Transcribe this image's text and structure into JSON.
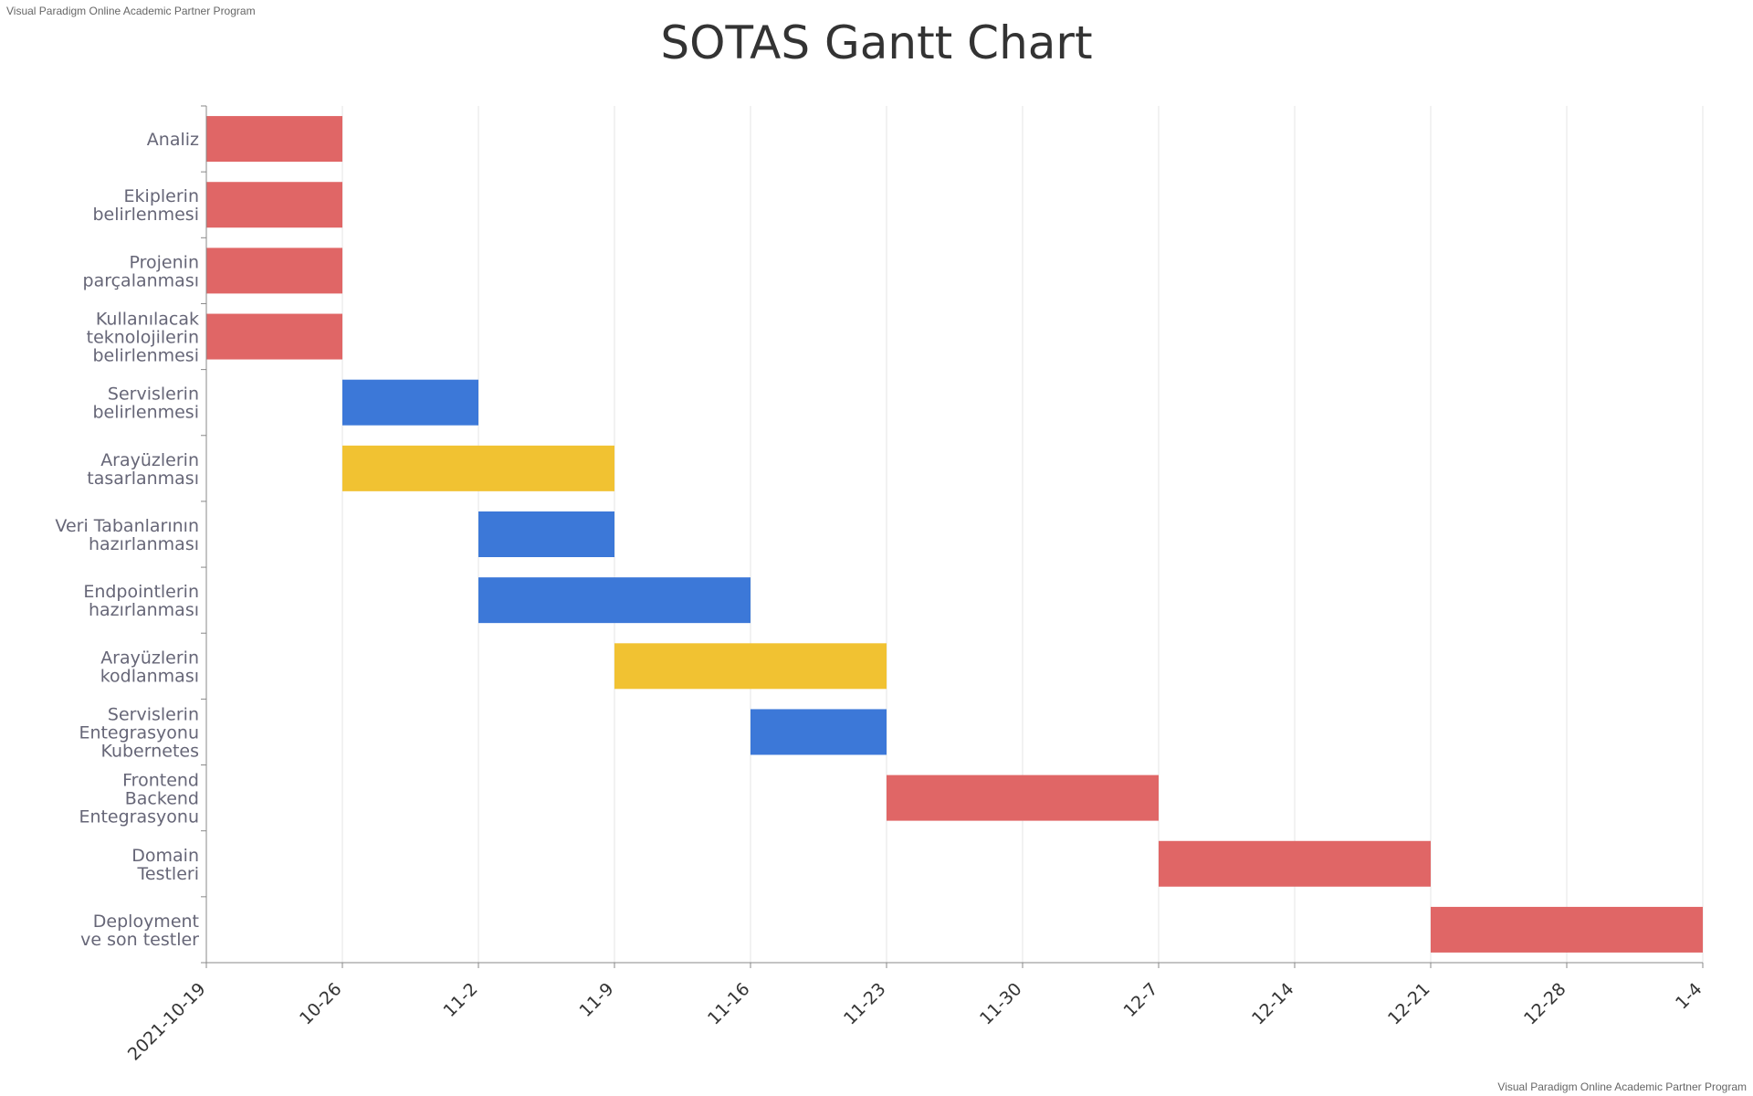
{
  "watermark": {
    "top": "Visual Paradigm Online Academic Partner Program",
    "bottom": "Visual Paradigm Online Academic Partner Program"
  },
  "colors": {
    "red": "#e06666",
    "blue": "#3c78d8",
    "yellow": "#f1c232",
    "grid": "#e6e6e6",
    "axis": "#888888"
  },
  "chart_data": {
    "type": "gantt",
    "title": "SOTAS Gantt Chart",
    "x_range": [
      "2021-10-19",
      "2022-01-04"
    ],
    "x_ticks": [
      {
        "date": "2021-10-19",
        "label": "2021-10-19"
      },
      {
        "date": "2021-10-26",
        "label": "10-26"
      },
      {
        "date": "2021-11-02",
        "label": "11-2"
      },
      {
        "date": "2021-11-09",
        "label": "11-9"
      },
      {
        "date": "2021-11-16",
        "label": "11-16"
      },
      {
        "date": "2021-11-23",
        "label": "11-23"
      },
      {
        "date": "2021-11-30",
        "label": "11-30"
      },
      {
        "date": "2021-12-07",
        "label": "12-7"
      },
      {
        "date": "2021-12-14",
        "label": "12-14"
      },
      {
        "date": "2021-12-21",
        "label": "12-21"
      },
      {
        "date": "2021-12-28",
        "label": "12-28"
      },
      {
        "date": "2022-01-04",
        "label": "1-4"
      }
    ],
    "grid": true,
    "tasks": [
      {
        "label": [
          "Analiz"
        ],
        "start": "2021-10-19",
        "end": "2021-10-26",
        "color": "red"
      },
      {
        "label": [
          "Ekiplerin",
          "belirlenmesi"
        ],
        "start": "2021-10-19",
        "end": "2021-10-26",
        "color": "red"
      },
      {
        "label": [
          "Projenin",
          "parçalanması"
        ],
        "start": "2021-10-19",
        "end": "2021-10-26",
        "color": "red"
      },
      {
        "label": [
          "Kullanılacak",
          "teknolojilerin",
          "belirlenmesi"
        ],
        "start": "2021-10-19",
        "end": "2021-10-26",
        "color": "red"
      },
      {
        "label": [
          "Servislerin",
          "belirlenmesi"
        ],
        "start": "2021-10-26",
        "end": "2021-11-02",
        "color": "blue"
      },
      {
        "label": [
          "Arayüzlerin",
          "tasarlanması"
        ],
        "start": "2021-10-26",
        "end": "2021-11-09",
        "color": "yellow"
      },
      {
        "label": [
          "Veri Tabanlarının",
          "hazırlanması"
        ],
        "start": "2021-11-02",
        "end": "2021-11-09",
        "color": "blue"
      },
      {
        "label": [
          "Endpointlerin",
          "hazırlanması"
        ],
        "start": "2021-11-02",
        "end": "2021-11-16",
        "color": "blue"
      },
      {
        "label": [
          "Arayüzlerin",
          "kodlanması"
        ],
        "start": "2021-11-09",
        "end": "2021-11-23",
        "color": "yellow"
      },
      {
        "label": [
          "Servislerin",
          "Entegrasyonu",
          "Kubernetes"
        ],
        "start": "2021-11-16",
        "end": "2021-11-23",
        "color": "blue"
      },
      {
        "label": [
          "Frontend",
          "Backend",
          "Entegrasyonu"
        ],
        "start": "2021-11-23",
        "end": "2021-12-07",
        "color": "red"
      },
      {
        "label": [
          "Domain",
          "Testleri"
        ],
        "start": "2021-12-07",
        "end": "2021-12-21",
        "color": "red"
      },
      {
        "label": [
          "Deployment",
          "ve son testler"
        ],
        "start": "2021-12-21",
        "end": "2022-01-04",
        "color": "red"
      }
    ]
  }
}
